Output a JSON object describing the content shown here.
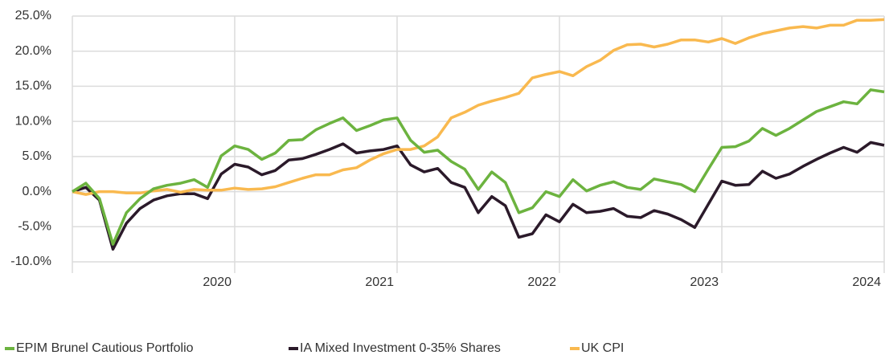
{
  "chart_data": {
    "type": "line",
    "x": [
      2019,
      2019.083,
      2019.167,
      2019.25,
      2019.333,
      2019.417,
      2019.5,
      2019.583,
      2019.667,
      2019.75,
      2019.833,
      2019.917,
      2020,
      2020.083,
      2020.167,
      2020.25,
      2020.333,
      2020.417,
      2020.5,
      2020.583,
      2020.667,
      2020.75,
      2020.833,
      2020.917,
      2021,
      2021.083,
      2021.167,
      2021.25,
      2021.333,
      2021.417,
      2021.5,
      2021.583,
      2021.667,
      2021.75,
      2021.833,
      2021.917,
      2022,
      2022.083,
      2022.167,
      2022.25,
      2022.333,
      2022.417,
      2022.5,
      2022.583,
      2022.667,
      2022.75,
      2022.833,
      2022.917,
      2023,
      2023.083,
      2023.167,
      2023.25,
      2023.333,
      2023.417,
      2023.5,
      2023.583,
      2023.667,
      2023.75,
      2023.833,
      2023.917,
      2024
    ],
    "series": [
      {
        "name": "EPIM Brunel Cautious Portfolio",
        "color": "#6cb33f",
        "values": [
          0,
          1.2,
          -1,
          -7.5,
          -3,
          -1,
          0.4,
          0.9,
          1.2,
          1.7,
          0.6,
          5.1,
          6.5,
          6.0,
          4.6,
          5.5,
          7.3,
          7.4,
          8.8,
          9.7,
          10.5,
          8.7,
          9.4,
          10.2,
          10.5,
          7.3,
          5.6,
          5.9,
          4.3,
          3.2,
          0.3,
          2.8,
          1.3,
          -3.0,
          -2.3,
          0,
          -0.7,
          1.7,
          0.1,
          0.9,
          1.4,
          0.6,
          0.3,
          1.8,
          1.4,
          1.0,
          0,
          3.2,
          6.3,
          6.4,
          7.2,
          9.0,
          8.0,
          9.0,
          10.2,
          11.4,
          12.1,
          12.8,
          12.5,
          14.5,
          14.2
        ]
      },
      {
        "name": "IA Mixed Investment 0-35% Shares",
        "color": "#2b1a2a",
        "values": [
          0,
          0.6,
          -1.2,
          -8.2,
          -4.5,
          -2.4,
          -1.2,
          -0.6,
          -0.3,
          -0.3,
          -1.0,
          2.5,
          3.9,
          3.5,
          2.4,
          3.0,
          4.5,
          4.7,
          5.3,
          6.0,
          6.8,
          5.5,
          5.8,
          6.0,
          6.5,
          3.8,
          2.8,
          3.3,
          1.3,
          0.6,
          -3.0,
          -0.7,
          -2.0,
          -6.5,
          -6.0,
          -3.3,
          -4.3,
          -1.8,
          -3.0,
          -2.8,
          -2.4,
          -3.5,
          -3.7,
          -2.7,
          -3.2,
          -4.0,
          -5.1,
          -1.8,
          1.5,
          0.9,
          1.0,
          2.9,
          1.9,
          2.5,
          3.6,
          4.6,
          5.5,
          6.3,
          5.6,
          7.0,
          6.6
        ]
      },
      {
        "name": "UK CPI",
        "color": "#f9b94f",
        "values": [
          0,
          -0.4,
          0,
          0,
          -0.2,
          -0.2,
          0.1,
          0.3,
          -0.1,
          0.3,
          0.2,
          0.2,
          0.5,
          0.3,
          0.4,
          0.7,
          1.3,
          1.9,
          2.4,
          2.4,
          3.1,
          3.4,
          4.5,
          5.4,
          6.0,
          6.0,
          6.5,
          7.8,
          10.5,
          11.3,
          12.3,
          12.9,
          13.4,
          14.0,
          16.2,
          16.7,
          17.1,
          16.5,
          17.8,
          18.7,
          20.1,
          20.9,
          21.0,
          20.6,
          21.0,
          21.6,
          21.6,
          21.3,
          21.8,
          21.1,
          21.9,
          22.5,
          22.9,
          23.3,
          23.5,
          23.3,
          23.7,
          23.7,
          24.4,
          24.4,
          24.5
        ]
      }
    ],
    "xlim": [
      2019,
      2024
    ],
    "xticks": [
      2020,
      2021,
      2022,
      2023,
      2024
    ],
    "ylim": [
      -10,
      25
    ],
    "yticks": [
      {
        "value": -10,
        "label": "-10.0%"
      },
      {
        "value": -5,
        "label": "-5.0%"
      },
      {
        "value": 0,
        "label": "0.0%"
      },
      {
        "value": 5,
        "label": "5.0%"
      },
      {
        "value": 10,
        "label": "10.0%"
      },
      {
        "value": 15,
        "label": "15.0%"
      },
      {
        "value": 20,
        "label": "20.0%"
      },
      {
        "value": 25,
        "label": "25.0%"
      }
    ],
    "grid": true,
    "legend": "bottom"
  }
}
